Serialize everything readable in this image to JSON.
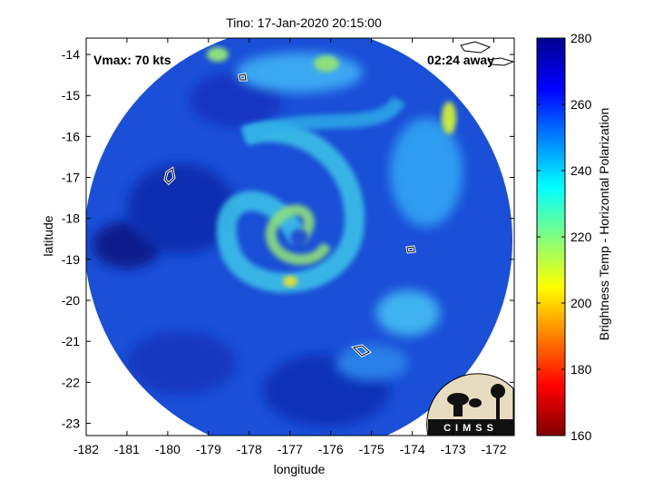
{
  "title": "Tino: 17-Jan-2020 20:15:00",
  "annotations": {
    "vmax": "Vmax: 70 kts",
    "time_away": "02:24 away"
  },
  "axes": {
    "xlabel": "longitude",
    "ylabel": "latitude",
    "xticks": [
      "-182",
      "-181",
      "-180",
      "-179",
      "-178",
      "-177",
      "-176",
      "-175",
      "-174",
      "-173",
      "-172"
    ],
    "yticks": [
      "-14",
      "-15",
      "-16",
      "-17",
      "-18",
      "-19",
      "-20",
      "-21",
      "-22",
      "-23"
    ],
    "xlim": [
      -182,
      -171.5
    ],
    "ylim": [
      -23.3,
      -13.6
    ]
  },
  "colorbar": {
    "label": "Brightness Temp - Horizontal Polarization",
    "ticks": [
      "280",
      "260",
      "240",
      "220",
      "200",
      "180",
      "160"
    ],
    "range": [
      160,
      280
    ],
    "colormap": "jet"
  },
  "logo": {
    "text": "CIMSS"
  },
  "chart_data": {
    "type": "heatmap",
    "title": "Tino: 17-Jan-2020 20:15:00",
    "xlabel": "longitude",
    "ylabel": "latitude",
    "xlim": [
      -182,
      -171.5
    ],
    "ylim": [
      -23.3,
      -13.6
    ],
    "storm_center": {
      "lon": -176.8,
      "lat": -18.4
    },
    "value_range": [
      160,
      280
    ]
  }
}
